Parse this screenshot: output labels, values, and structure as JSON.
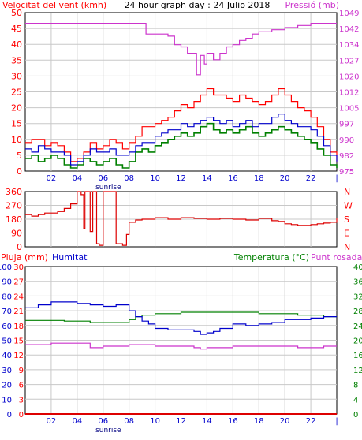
{
  "header": {
    "left": "Velocitat del vent (kmh)",
    "center": "24 hour graph day : 24 Julio 2018",
    "right": "Pressió (mb)"
  },
  "colors": {
    "wind_avg": "#008000",
    "wind_gust": "#ff0000",
    "wind_max": "#0000cc",
    "pressure": "#cc33cc",
    "direction": "#dd0000",
    "humidity": "#0000cc",
    "temperature": "#008000",
    "dewpoint": "#cc33cc",
    "rain": "#dd0000",
    "grid": "#c8c8c8",
    "axis_red": "#ff0000",
    "axis_blue": "#0000cc",
    "axis_green": "#008000"
  },
  "chart_data": [
    {
      "type": "line",
      "ylabel": "Velocitat del vent (kmh)",
      "y2label": "Pressió (mb)",
      "ylim": [
        0,
        50
      ],
      "y_ticks": [
        "0",
        "5",
        "10",
        "15",
        "20",
        "25",
        "30",
        "35",
        "40",
        "45",
        "50"
      ],
      "y2_ticks": [
        "975",
        "982",
        "990",
        "997",
        "1005",
        "1012",
        "1020",
        "1027",
        "1034",
        "1042",
        "1049"
      ],
      "x_ticks": [
        "02",
        "04",
        "06",
        "08",
        "10",
        "12",
        "14",
        "16",
        "18",
        "20",
        "22",
        "|"
      ],
      "x_annotation": "sunrise",
      "xlim": [
        0,
        24
      ],
      "series": [
        {
          "key": "wind_gust",
          "style": "step",
          "x": [
            0,
            0.5,
            1,
            1.5,
            2,
            2.5,
            3,
            3.5,
            4,
            4.5,
            5,
            5.5,
            6,
            6.5,
            7,
            7.5,
            8,
            8.5,
            9,
            9.5,
            10,
            10.5,
            11,
            11.5,
            12,
            12.5,
            13,
            13.5,
            14,
            14.5,
            15,
            15.5,
            16,
            16.5,
            17,
            17.5,
            18,
            18.5,
            19,
            19.5,
            20,
            20.5,
            21,
            21.5,
            22,
            22.5,
            23,
            23.5,
            24
          ],
          "values": [
            9,
            10,
            10,
            8,
            9,
            8,
            6,
            3,
            4,
            6,
            9,
            7,
            8,
            10,
            9,
            7,
            9,
            11,
            14,
            14,
            15,
            16,
            17,
            19,
            21,
            20,
            22,
            24,
            26,
            24,
            24,
            23,
            22,
            24,
            23,
            22,
            21,
            22,
            24,
            26,
            24,
            22,
            20,
            19,
            17,
            14,
            10,
            6,
            3
          ]
        },
        {
          "key": "wind_max",
          "style": "step",
          "x": [
            0,
            0.5,
            1,
            1.5,
            2,
            2.5,
            3,
            3.5,
            4,
            4.5,
            5,
            5.5,
            6,
            6.5,
            7,
            7.5,
            8,
            8.5,
            9,
            9.5,
            10,
            10.5,
            11,
            11.5,
            12,
            12.5,
            13,
            13.5,
            14,
            14.5,
            15,
            15.5,
            16,
            16.5,
            17,
            17.5,
            18,
            18.5,
            19,
            19.5,
            20,
            20.5,
            21,
            21.5,
            22,
            22.5,
            23,
            23.5,
            24
          ],
          "values": [
            7,
            6,
            8,
            7,
            6,
            6,
            5,
            2,
            3,
            5,
            7,
            6,
            6,
            7,
            5,
            5,
            6,
            8,
            9,
            9,
            11,
            12,
            13,
            13,
            15,
            14,
            15,
            16,
            17,
            16,
            15,
            16,
            14,
            15,
            16,
            14,
            15,
            15,
            17,
            18,
            16,
            15,
            14,
            14,
            13,
            11,
            8,
            5,
            3
          ]
        },
        {
          "key": "wind_avg",
          "style": "step",
          "x": [
            0,
            0.5,
            1,
            1.5,
            2,
            2.5,
            3,
            3.5,
            4,
            4.5,
            5,
            5.5,
            6,
            6.5,
            7,
            7.5,
            8,
            8.5,
            9,
            9.5,
            10,
            10.5,
            11,
            11.5,
            12,
            12.5,
            13,
            13.5,
            14,
            14.5,
            15,
            15.5,
            16,
            16.5,
            17,
            17.5,
            18,
            18.5,
            19,
            19.5,
            20,
            20.5,
            21,
            21.5,
            22,
            22.5,
            23,
            23.5,
            24
          ],
          "values": [
            4,
            5,
            3,
            4,
            5,
            4,
            2,
            1,
            2,
            4,
            3,
            2,
            3,
            4,
            2,
            1,
            3,
            6,
            7,
            6,
            8,
            9,
            10,
            11,
            12,
            11,
            12,
            14,
            15,
            13,
            12,
            13,
            12,
            13,
            14,
            12,
            11,
            12,
            13,
            14,
            13,
            12,
            11,
            10,
            9,
            7,
            5,
            2,
            1
          ]
        },
        {
          "key": "pressure",
          "style": "step",
          "axis": "y2",
          "x": [
            0,
            4,
            5,
            7,
            8,
            9,
            9.3,
            10,
            11,
            11.5,
            12,
            12.5,
            13,
            13.2,
            13.5,
            13.8,
            14,
            14.5,
            15,
            15.5,
            16,
            16.5,
            17,
            17.5,
            18,
            18.5,
            19,
            20,
            21,
            22,
            23,
            24
          ],
          "values": [
            1044,
            1044,
            1044,
            1044,
            1044,
            1044,
            1039,
            1039,
            1038,
            1034,
            1033,
            1030,
            1030,
            1020,
            1029,
            1025,
            1030,
            1027,
            1030,
            1033,
            1034,
            1036,
            1037,
            1039,
            1040,
            1040,
            1041,
            1042,
            1043,
            1044,
            1044,
            1044
          ]
        }
      ]
    },
    {
      "type": "line",
      "ylim": [
        0,
        360
      ],
      "y_ticks": [
        "0",
        "90",
        "180",
        "270",
        "360"
      ],
      "y2_ticks": [
        "N",
        "E",
        "S",
        "W",
        "N"
      ],
      "series": [
        {
          "key": "direction",
          "style": "step",
          "x": [
            0,
            0.5,
            1,
            1.5,
            2,
            2.5,
            3,
            3.5,
            4,
            4.3,
            4.5,
            4.6,
            5,
            5.2,
            5.5,
            5.7,
            6,
            6.5,
            7,
            7.5,
            7.8,
            8,
            8.5,
            9,
            10,
            11,
            12,
            13,
            14,
            15,
            16,
            17,
            18,
            19,
            19.5,
            20,
            20.5,
            21,
            21.5,
            22,
            22.5,
            23,
            23.5,
            24
          ],
          "values": [
            210,
            200,
            210,
            220,
            220,
            230,
            250,
            280,
            360,
            340,
            120,
            360,
            100,
            360,
            20,
            10,
            360,
            360,
            20,
            10,
            80,
            160,
            175,
            180,
            190,
            180,
            190,
            185,
            180,
            185,
            180,
            175,
            185,
            170,
            165,
            150,
            145,
            140,
            140,
            145,
            150,
            155,
            160,
            185
          ]
        }
      ]
    },
    {
      "type": "line",
      "ylabel": "Pluja (mm)",
      "y_label_hum": "Humitat",
      "y2label": "Temperatura (°C)",
      "y2label_b": "Punt rosada",
      "ylim": [
        0,
        100
      ],
      "y_ticks_rain": [
        "0",
        "3",
        "6",
        "9",
        "12",
        "15",
        "18",
        "21",
        "24",
        "27",
        "30"
      ],
      "y_ticks_hum": [
        "0",
        "10",
        "20",
        "30",
        "40",
        "50",
        "60",
        "70",
        "80",
        "90",
        "100"
      ],
      "y2_ticks": [
        "0",
        "4",
        "8",
        "12",
        "16",
        "20",
        "24",
        "28",
        "32",
        "36",
        "40"
      ],
      "series": [
        {
          "key": "humidity",
          "style": "step",
          "x": [
            0,
            1,
            2,
            3,
            4,
            5,
            6,
            7,
            8,
            8.5,
            9,
            9.5,
            10,
            11,
            12,
            13,
            13.5,
            14,
            14.5,
            15,
            16,
            17,
            18,
            19,
            20,
            21,
            22,
            23,
            24
          ],
          "values": [
            72,
            74,
            76,
            76,
            75,
            74,
            73,
            74,
            70,
            66,
            63,
            61,
            58,
            57,
            57,
            56,
            54,
            55,
            56,
            58,
            61,
            60,
            61,
            62,
            64,
            64,
            65,
            66,
            66
          ]
        },
        {
          "key": "temperature",
          "style": "step",
          "axis": "y2",
          "x": [
            0,
            1,
            2,
            3,
            4,
            5,
            6,
            7,
            8,
            8.5,
            9,
            10,
            11,
            12,
            13,
            14,
            15,
            16,
            17,
            18,
            19,
            20,
            21,
            22,
            23,
            24
          ],
          "values": [
            25.4,
            25.4,
            25.4,
            25.2,
            25.2,
            24.8,
            24.8,
            24.8,
            25.6,
            26.4,
            26.8,
            27.2,
            27.2,
            27.6,
            27.6,
            27.6,
            27.6,
            27.6,
            27.6,
            27.2,
            27.2,
            27.2,
            26.8,
            26.8,
            26.4,
            26.4
          ]
        },
        {
          "key": "dewpoint",
          "style": "step",
          "axis": "y2",
          "x": [
            0,
            1,
            2,
            3,
            4,
            5,
            6,
            7,
            8,
            9,
            10,
            11,
            12,
            13,
            13.5,
            14,
            15,
            16,
            17,
            18,
            19,
            20,
            21,
            22,
            23,
            24
          ],
          "values": [
            18.8,
            18.8,
            19.2,
            19.2,
            19.2,
            18,
            18.4,
            18.4,
            18.8,
            18.8,
            18.4,
            18.4,
            18.4,
            18,
            17.6,
            18,
            18,
            18.4,
            18.4,
            18.4,
            18.4,
            18.4,
            18,
            18,
            18.4,
            18.4
          ]
        },
        {
          "key": "rain",
          "style": "step",
          "x": [
            0,
            24
          ],
          "values": [
            0,
            0
          ]
        }
      ]
    }
  ],
  "panel1_labels": {
    "left": "Velocitat del vent (kmh)",
    "right": "Pressió (mb)",
    "sunrise": "sunrise"
  },
  "panel3_labels": {
    "rain": "Pluja (mm)",
    "humidity": "Humitat",
    "temperature": "Temperatura (°C)",
    "dewpoint": "Punt rosada",
    "sunrise": "sunrise"
  }
}
